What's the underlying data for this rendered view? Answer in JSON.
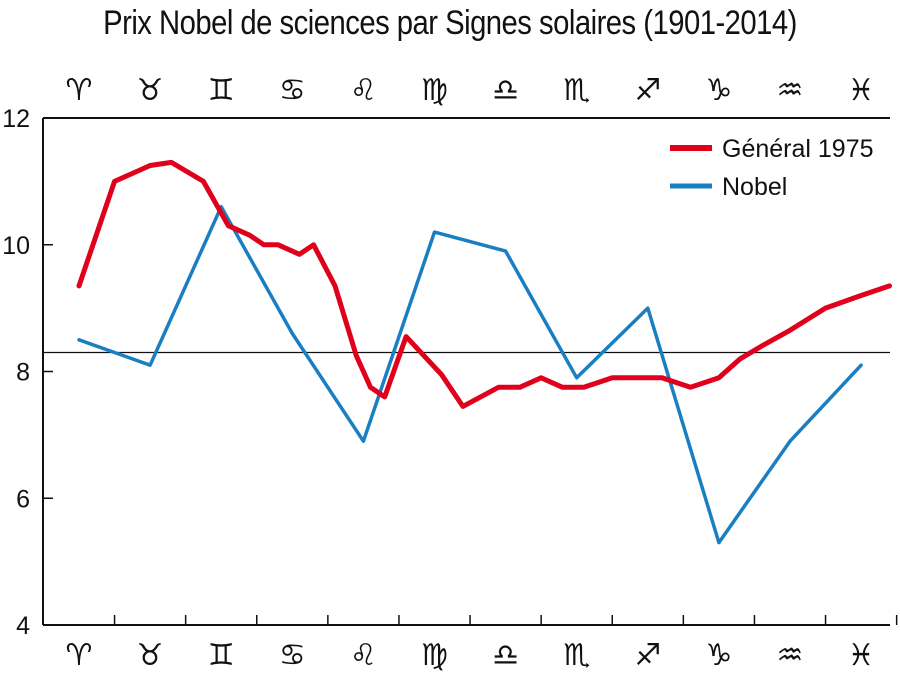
{
  "chart_data": {
    "type": "line",
    "title": "Prix Nobel de sciences par Signes solaires (1901-2014)",
    "xlabel": "",
    "ylabel": "",
    "ylim": [
      4,
      12
    ],
    "yticks": [
      "4",
      "6",
      "8",
      "10",
      "12"
    ],
    "zodiac_signs": [
      "♈",
      "♉",
      "♊",
      "♋",
      "♌",
      "♍",
      "♎",
      "♏",
      "♐",
      "♑",
      "♒",
      "♓"
    ],
    "reference_line": 8.3,
    "grid": false,
    "legend_position": "top-right",
    "series": [
      {
        "name": "Général 1975",
        "color": "#e0001b",
        "x": [
          0,
          0.5,
          1,
          1.3,
          1.75,
          2.1,
          2.4,
          2.6,
          2.8,
          3.1,
          3.3,
          3.6,
          3.9,
          4.1,
          4.3,
          4.6,
          5.1,
          5.4,
          5.9,
          6.2,
          6.5,
          6.8,
          7.1,
          7.5,
          7.9,
          8.2,
          8.6,
          9.0,
          9.3,
          9.6,
          10.0,
          10.5,
          11.0,
          11.4
        ],
        "values": [
          9.35,
          11.0,
          11.25,
          11.3,
          11.0,
          10.3,
          10.15,
          10.0,
          10.0,
          9.85,
          10.0,
          9.35,
          8.25,
          7.75,
          7.6,
          8.55,
          7.95,
          7.45,
          7.75,
          7.75,
          7.9,
          7.75,
          7.75,
          7.9,
          7.9,
          7.9,
          7.75,
          7.9,
          8.2,
          8.4,
          8.65,
          9.0,
          9.2,
          9.35
        ]
      },
      {
        "name": "Nobel",
        "color": "#1a7fc2",
        "x": [
          0,
          1,
          2,
          3,
          4,
          5,
          6,
          7,
          8,
          9,
          10,
          11
        ],
        "values": [
          8.5,
          8.1,
          10.6,
          8.6,
          6.9,
          10.2,
          9.9,
          7.9,
          9.0,
          5.3,
          6.9,
          8.1
        ]
      }
    ]
  }
}
